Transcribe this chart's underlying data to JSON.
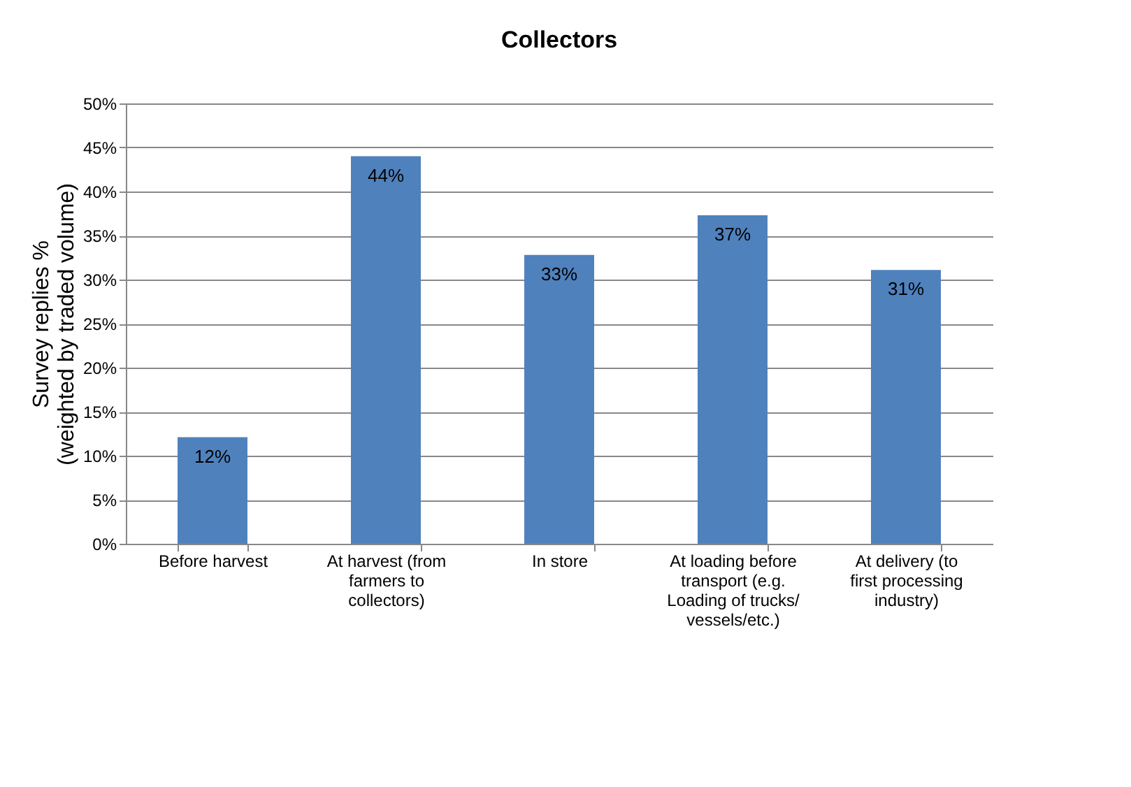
{
  "chart_data": {
    "type": "bar",
    "title": "Collectors",
    "ylabel": "Survey replies %\n(weighted by traded volume)",
    "categories": [
      "Before harvest",
      "At harvest (from farmers to collectors)",
      "In store",
      "At loading before transport (e.g. Loading of trucks/vessels/etc.)",
      "At delivery (to first processing industry)"
    ],
    "series": [
      {
        "color": "#4f81bd",
        "values": [
          12.1,
          44,
          32.8,
          37.3,
          31.1
        ],
        "value_labels": [
          "12%",
          "44%",
          "33%",
          "37%",
          "31%"
        ]
      }
    ],
    "ylim": [
      0,
      50
    ],
    "yticks": [
      {
        "value": 0,
        "label": "0%"
      },
      {
        "value": 5,
        "label": "5%"
      },
      {
        "value": 10,
        "label": "10%"
      },
      {
        "value": 15,
        "label": "15%"
      },
      {
        "value": 20,
        "label": "20%"
      },
      {
        "value": 25,
        "label": "25%"
      },
      {
        "value": 30,
        "label": "30%"
      },
      {
        "value": 35,
        "label": "35%"
      },
      {
        "value": 40,
        "label": "40%"
      },
      {
        "value": 45,
        "label": "45%"
      },
      {
        "value": 50,
        "label": "50%"
      }
    ],
    "grid": "y"
  }
}
